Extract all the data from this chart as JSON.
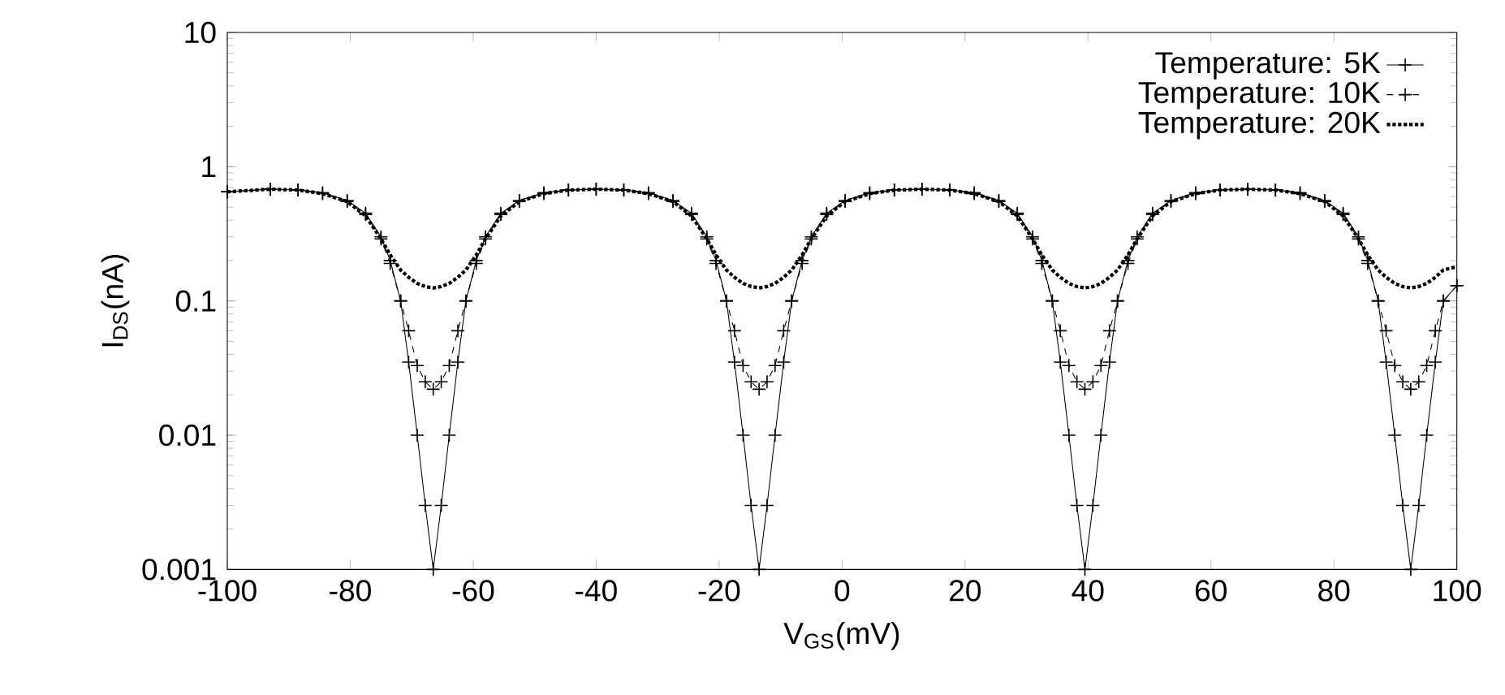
{
  "chart_data": {
    "type": "line",
    "xlabel": "V$_{GS}$(mV)",
    "ylabel": "I$_{DS}$(nA)",
    "log": "y",
    "legend": "top right",
    "grid": false,
    "xlim": [
      -100,
      100
    ],
    "xticks": [
      -100,
      -80,
      -60,
      -40,
      -20,
      0,
      20,
      40,
      60,
      80,
      100
    ],
    "ylim": [
      0.001,
      10
    ],
    "yticks": [
      0.001,
      0.01,
      0.1,
      1,
      10
    ],
    "x": [
      -100,
      -93,
      -88.5,
      -84.5,
      -80.5,
      -77.5,
      -75,
      -73.5,
      -71.8,
      -70.5,
      -69.1,
      -67.8,
      -66.5,
      -65.2,
      -63.9,
      -62.5,
      -61.2,
      -59.5,
      -58,
      -55.5,
      -52.5,
      -48.5,
      -44.5,
      -40,
      -35.5,
      -31.5,
      -27.5,
      -24.5,
      -22,
      -20.5,
      -18.8,
      -17.5,
      -16.1,
      -14.8,
      -13.5,
      -12.2,
      -10.9,
      -9.5,
      -8.2,
      -6.5,
      -5,
      -2.5,
      0.5,
      4.5,
      8.5,
      13,
      17.5,
      21.5,
      25.5,
      28.5,
      31,
      32.5,
      34.2,
      35.5,
      36.9,
      38.2,
      39.5,
      40.8,
      42.1,
      43.5,
      44.8,
      46.5,
      48,
      50.5,
      53.5,
      57.5,
      61.5,
      66,
      70.5,
      74.5,
      78.5,
      81.5,
      84,
      85.5,
      87.2,
      88.5,
      89.9,
      91.2,
      92.5,
      93.8,
      95.1,
      96.5,
      97.8,
      100
    ],
    "series": [
      {
        "name": "Temperature: 5K",
        "color": "#000000",
        "marker": "cross",
        "line_style": "solid",
        "values": [
          0.65,
          0.68,
          0.67,
          0.64,
          0.56,
          0.45,
          0.3,
          0.2,
          0.1,
          0.035,
          0.01,
          0.003,
          0.001,
          0.003,
          0.01,
          0.035,
          0.1,
          0.2,
          0.3,
          0.45,
          0.56,
          0.64,
          0.67,
          0.68,
          0.67,
          0.64,
          0.56,
          0.45,
          0.3,
          0.2,
          0.1,
          0.035,
          0.01,
          0.003,
          0.001,
          0.003,
          0.01,
          0.035,
          0.1,
          0.2,
          0.3,
          0.45,
          0.56,
          0.64,
          0.67,
          0.68,
          0.67,
          0.64,
          0.56,
          0.45,
          0.3,
          0.2,
          0.1,
          0.035,
          0.01,
          0.003,
          0.001,
          0.003,
          0.01,
          0.035,
          0.1,
          0.2,
          0.3,
          0.45,
          0.56,
          0.64,
          0.67,
          0.68,
          0.67,
          0.64,
          0.56,
          0.45,
          0.3,
          0.2,
          0.1,
          0.035,
          0.01,
          0.003,
          0.001,
          0.003,
          0.01,
          0.035,
          0.1,
          0.13
        ]
      },
      {
        "name": "Temperature: 10K",
        "color": "#000000",
        "marker": "cross",
        "line_style": "dashed",
        "values": [
          0.65,
          0.68,
          0.67,
          0.63,
          0.55,
          0.44,
          0.29,
          0.19,
          0.1,
          0.06,
          0.033,
          0.025,
          0.022,
          0.025,
          0.033,
          0.06,
          0.1,
          0.19,
          0.29,
          0.44,
          0.55,
          0.63,
          0.67,
          0.68,
          0.67,
          0.63,
          0.55,
          0.44,
          0.29,
          0.19,
          0.1,
          0.06,
          0.033,
          0.025,
          0.022,
          0.025,
          0.033,
          0.06,
          0.1,
          0.19,
          0.29,
          0.44,
          0.55,
          0.63,
          0.67,
          0.68,
          0.67,
          0.63,
          0.55,
          0.44,
          0.29,
          0.19,
          0.1,
          0.06,
          0.033,
          0.025,
          0.022,
          0.025,
          0.033,
          0.06,
          0.1,
          0.19,
          0.29,
          0.44,
          0.55,
          0.63,
          0.67,
          0.68,
          0.67,
          0.63,
          0.55,
          0.44,
          0.29,
          0.19,
          0.1,
          0.06,
          0.033,
          0.025,
          0.022,
          0.025,
          0.033,
          0.06,
          0.1,
          0.13
        ]
      },
      {
        "name": "Temperature: 20K",
        "color": "#000000",
        "marker": "none",
        "line_style": "dotted",
        "values": [
          0.65,
          0.68,
          0.67,
          0.63,
          0.55,
          0.43,
          0.29,
          0.22,
          0.17,
          0.15,
          0.135,
          0.128,
          0.125,
          0.128,
          0.135,
          0.15,
          0.17,
          0.22,
          0.29,
          0.43,
          0.55,
          0.63,
          0.67,
          0.68,
          0.67,
          0.63,
          0.55,
          0.43,
          0.29,
          0.22,
          0.17,
          0.15,
          0.135,
          0.128,
          0.125,
          0.128,
          0.135,
          0.15,
          0.17,
          0.22,
          0.29,
          0.43,
          0.55,
          0.63,
          0.67,
          0.68,
          0.67,
          0.63,
          0.55,
          0.43,
          0.29,
          0.22,
          0.17,
          0.15,
          0.135,
          0.128,
          0.125,
          0.128,
          0.135,
          0.15,
          0.17,
          0.22,
          0.29,
          0.43,
          0.55,
          0.63,
          0.67,
          0.68,
          0.67,
          0.63,
          0.55,
          0.43,
          0.29,
          0.22,
          0.17,
          0.15,
          0.135,
          0.128,
          0.125,
          0.128,
          0.135,
          0.15,
          0.17,
          0.18
        ]
      }
    ]
  }
}
